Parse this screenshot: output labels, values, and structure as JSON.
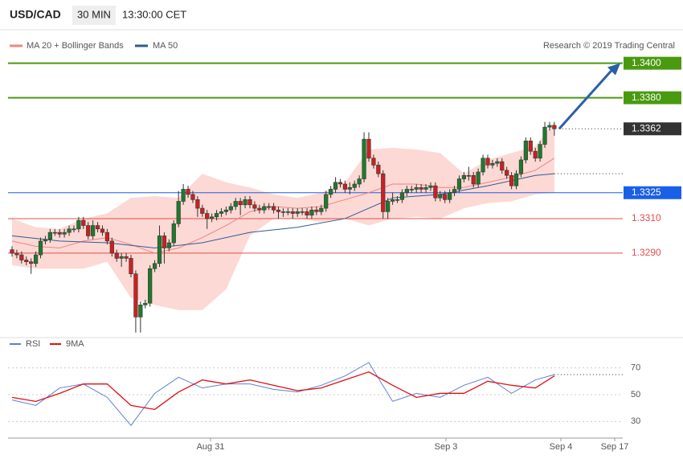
{
  "header": {
    "symbol": "USD/CAD",
    "interval": "30 MIN",
    "time": "13:30:00 CET"
  },
  "chart_data": [
    {
      "type": "candlestick",
      "credit": "Research © 2019 Trading Central",
      "ylim": [
        1.3242,
        1.3418
      ],
      "x_labels": [
        "Aug 31",
        "Sep 3",
        "Sep 4",
        "Sep 17"
      ],
      "up_color": "#1e7a2c",
      "down_color": "#cc2020",
      "open": [
        1.3292,
        1.329,
        1.3289,
        1.3286,
        1.3285,
        1.3284,
        1.3289,
        1.3297,
        1.3298,
        1.3302,
        1.3302,
        1.3301,
        1.3302,
        1.3304,
        1.3304,
        1.3309,
        1.3306,
        1.33,
        1.3306,
        1.3304,
        1.3302,
        1.3297,
        1.329,
        1.3287,
        1.3288,
        1.3287,
        1.3278,
        1.3253,
        1.326,
        1.3261,
        1.3281,
        1.3284,
        1.33,
        1.3293,
        1.3296,
        1.3307,
        1.332,
        1.3327,
        1.3324,
        1.3321,
        1.3316,
        1.3313,
        1.331,
        1.3311,
        1.3313,
        1.3314,
        1.3315,
        1.3317,
        1.332,
        1.3318,
        1.3321,
        1.3318,
        1.3316,
        1.3315,
        1.3317,
        1.3317,
        1.3315,
        1.3314,
        1.3314,
        1.3314,
        1.3313,
        1.3314,
        1.3314,
        1.3312,
        1.3315,
        1.3314,
        1.3316,
        1.3324,
        1.3327,
        1.3331,
        1.333,
        1.3327,
        1.3328,
        1.333,
        1.3333,
        1.3356,
        1.3345,
        1.3341,
        1.3336,
        1.3314,
        1.332,
        1.3321,
        1.3321,
        1.3325,
        1.3327,
        1.3327,
        1.3328,
        1.3327,
        1.3328,
        1.3329,
        1.3322,
        1.3324,
        1.3321,
        1.3325,
        1.3327,
        1.3333,
        1.3335,
        1.3335,
        1.333,
        1.3337,
        1.3345,
        1.3341,
        1.3342,
        1.3343,
        1.3338,
        1.3335,
        1.3329,
        1.3336,
        1.3344,
        1.3355,
        1.3349,
        1.3345,
        1.3353,
        1.3363,
        1.3364
      ],
      "high": [
        1.3294,
        1.3292,
        1.3291,
        1.3288,
        1.3287,
        1.3291,
        1.3299,
        1.33,
        1.3304,
        1.3304,
        1.3304,
        1.3304,
        1.3306,
        1.3306,
        1.3311,
        1.3311,
        1.3308,
        1.3309,
        1.3308,
        1.3306,
        1.3304,
        1.3299,
        1.3292,
        1.329,
        1.329,
        1.3289,
        1.328,
        1.3262,
        1.3263,
        1.3283,
        1.3286,
        1.3306,
        1.3302,
        1.3298,
        1.3309,
        1.3326,
        1.333,
        1.3329,
        1.3326,
        1.3323,
        1.3318,
        1.3315,
        1.3313,
        1.3315,
        1.3316,
        1.3317,
        1.3319,
        1.3322,
        1.3322,
        1.3323,
        1.3323,
        1.332,
        1.3318,
        1.3319,
        1.3319,
        1.3319,
        1.3317,
        1.3316,
        1.3316,
        1.3316,
        1.3316,
        1.3316,
        1.3316,
        1.3317,
        1.3317,
        1.3318,
        1.3326,
        1.3329,
        1.3334,
        1.3333,
        1.3332,
        1.3331,
        1.3332,
        1.3335,
        1.336,
        1.336,
        1.3347,
        1.3343,
        1.3338,
        1.3322,
        1.3325,
        1.3323,
        1.3327,
        1.3329,
        1.3329,
        1.333,
        1.333,
        1.333,
        1.3331,
        1.3331,
        1.3326,
        1.3326,
        1.3327,
        1.3329,
        1.3335,
        1.3337,
        1.334,
        1.3337,
        1.3339,
        1.3347,
        1.3347,
        1.3344,
        1.3345,
        1.3345,
        1.334,
        1.3337,
        1.3338,
        1.3346,
        1.3357,
        1.3357,
        1.3351,
        1.3355,
        1.3366,
        1.3366,
        1.3366
      ],
      "low": [
        1.3288,
        1.3287,
        1.3284,
        1.3283,
        1.3278,
        1.3282,
        1.3287,
        1.3295,
        1.3296,
        1.33,
        1.3299,
        1.3299,
        1.33,
        1.3302,
        1.3302,
        1.3304,
        1.3298,
        1.3298,
        1.3302,
        1.33,
        1.3295,
        1.3288,
        1.3285,
        1.3282,
        1.3285,
        1.3276,
        1.3244,
        1.3244,
        1.3258,
        1.3259,
        1.3279,
        1.3282,
        1.3284,
        1.3291,
        1.3294,
        1.3305,
        1.3318,
        1.3322,
        1.3319,
        1.3311,
        1.3311,
        1.3304,
        1.3308,
        1.3309,
        1.3311,
        1.3312,
        1.3313,
        1.3315,
        1.3312,
        1.3316,
        1.3316,
        1.3314,
        1.3313,
        1.3313,
        1.3315,
        1.3313,
        1.331,
        1.3311,
        1.3312,
        1.331,
        1.3311,
        1.3312,
        1.331,
        1.331,
        1.3312,
        1.3312,
        1.3314,
        1.3322,
        1.3325,
        1.3328,
        1.3325,
        1.3324,
        1.3326,
        1.3328,
        1.3331,
        1.3343,
        1.3339,
        1.3334,
        1.331,
        1.331,
        1.3318,
        1.3319,
        1.3319,
        1.3323,
        1.3325,
        1.3325,
        1.3325,
        1.3325,
        1.3326,
        1.332,
        1.332,
        1.3319,
        1.3319,
        1.3323,
        1.3325,
        1.3331,
        1.3332,
        1.3328,
        1.3328,
        1.3335,
        1.3339,
        1.3339,
        1.334,
        1.3336,
        1.3333,
        1.3327,
        1.3327,
        1.3334,
        1.3342,
        1.3347,
        1.3343,
        1.3343,
        1.3351,
        1.3361,
        1.3358
      ],
      "close": [
        1.329,
        1.3289,
        1.3286,
        1.3285,
        1.3284,
        1.3289,
        1.3297,
        1.3298,
        1.3302,
        1.3302,
        1.3301,
        1.3302,
        1.3304,
        1.3304,
        1.3309,
        1.3306,
        1.33,
        1.3306,
        1.3304,
        1.3302,
        1.3297,
        1.329,
        1.3287,
        1.3288,
        1.3287,
        1.3278,
        1.3253,
        1.326,
        1.3261,
        1.3281,
        1.3284,
        1.33,
        1.3293,
        1.3296,
        1.3307,
        1.332,
        1.3327,
        1.3324,
        1.3321,
        1.3316,
        1.3313,
        1.331,
        1.3311,
        1.3313,
        1.3314,
        1.3315,
        1.3317,
        1.332,
        1.3318,
        1.3321,
        1.3318,
        1.3316,
        1.3315,
        1.3317,
        1.3317,
        1.3315,
        1.3314,
        1.3314,
        1.3314,
        1.3313,
        1.3314,
        1.3314,
        1.3312,
        1.3315,
        1.3314,
        1.3316,
        1.3324,
        1.3327,
        1.3331,
        1.333,
        1.3327,
        1.3328,
        1.333,
        1.3333,
        1.3356,
        1.3345,
        1.3341,
        1.3336,
        1.3314,
        1.332,
        1.3321,
        1.3321,
        1.3325,
        1.3327,
        1.3327,
        1.3328,
        1.3327,
        1.3328,
        1.3329,
        1.3322,
        1.3324,
        1.3321,
        1.3325,
        1.3327,
        1.3333,
        1.3335,
        1.3335,
        1.333,
        1.3337,
        1.3345,
        1.3341,
        1.3342,
        1.3343,
        1.3338,
        1.3335,
        1.3329,
        1.3336,
        1.3344,
        1.3355,
        1.3349,
        1.3345,
        1.3353,
        1.3363,
        1.3364,
        1.3362
      ],
      "series": [
        {
          "name": "MA 20 + Bollinger Bands",
          "color": "#f08484",
          "band_color": "#fcd9d4",
          "x": [
            0,
            5,
            10,
            15,
            20,
            25,
            30,
            35,
            40,
            45,
            50,
            55,
            60,
            65,
            70,
            75,
            80,
            85,
            90,
            95,
            100,
            105,
            110,
            114
          ],
          "values": [
            1.3297,
            1.3294,
            1.3293,
            1.3297,
            1.3299,
            1.3295,
            1.329,
            1.3293,
            1.3299,
            1.3306,
            1.3314,
            1.3317,
            1.3316,
            1.3317,
            1.3321,
            1.3325,
            1.333,
            1.333,
            1.3328,
            1.3328,
            1.3331,
            1.3334,
            1.3338,
            1.3345
          ],
          "upper": [
            1.331,
            1.3305,
            1.3304,
            1.331,
            1.3313,
            1.3322,
            1.3323,
            1.3322,
            1.3336,
            1.3331,
            1.3328,
            1.3324,
            1.3322,
            1.3325,
            1.3331,
            1.335,
            1.3351,
            1.335,
            1.3348,
            1.3336,
            1.3344,
            1.3348,
            1.3352,
            1.3366
          ],
          "lower": [
            1.3283,
            1.3281,
            1.3281,
            1.3281,
            1.3285,
            1.3264,
            1.326,
            1.3257,
            1.3257,
            1.3269,
            1.33,
            1.331,
            1.331,
            1.3308,
            1.331,
            1.3306,
            1.331,
            1.3311,
            1.331,
            1.3316,
            1.3319,
            1.332,
            1.3324,
            1.3325
          ]
        },
        {
          "name": "MA 50",
          "color": "#2f5b97",
          "x": [
            0,
            10,
            20,
            30,
            40,
            50,
            60,
            70,
            80,
            90,
            100,
            110,
            114
          ],
          "values": [
            1.33,
            1.3297,
            1.3296,
            1.3293,
            1.3296,
            1.3302,
            1.3305,
            1.331,
            1.3322,
            1.3324,
            1.3329,
            1.3335,
            1.3336
          ]
        }
      ],
      "levels": [
        {
          "value": 1.34,
          "label": "1.3400",
          "color": "#4a9a10",
          "style": "box"
        },
        {
          "value": 1.338,
          "label": "1.3380",
          "color": "#4a9a10",
          "style": "box"
        },
        {
          "value": 1.3362,
          "label": "1.3362",
          "color": "#333333",
          "style": "box-dotted"
        },
        {
          "value": 1.3325,
          "label": "1.3325",
          "color": "#1a5fe8",
          "style": "box"
        },
        {
          "value": 1.331,
          "label": "1.3310",
          "color": "#e05050",
          "style": "text"
        },
        {
          "value": 1.329,
          "label": "1.3290",
          "color": "#e05050",
          "style": "text"
        }
      ]
    },
    {
      "type": "line",
      "ylim": [
        20,
        80
      ],
      "yticks": [
        30,
        50,
        70
      ],
      "x": [
        0,
        5,
        10,
        15,
        20,
        25,
        30,
        35,
        40,
        45,
        50,
        55,
        60,
        65,
        70,
        75,
        80,
        85,
        90,
        95,
        100,
        105,
        110,
        114
      ],
      "series": [
        {
          "name": "RSI",
          "color": "#5b7fd6",
          "values": [
            46,
            42,
            55,
            58,
            48,
            27,
            51,
            63,
            55,
            58,
            58,
            54,
            52,
            57,
            64,
            74,
            45,
            51,
            48,
            57,
            63,
            51,
            61,
            65
          ]
        },
        {
          "name": "9MA",
          "color": "#e01010",
          "values": [
            48,
            45,
            51,
            58,
            58,
            42,
            39,
            52,
            61,
            58,
            61,
            57,
            53,
            55,
            61,
            67,
            57,
            48,
            51,
            51,
            60,
            57,
            55,
            64
          ]
        }
      ]
    }
  ]
}
